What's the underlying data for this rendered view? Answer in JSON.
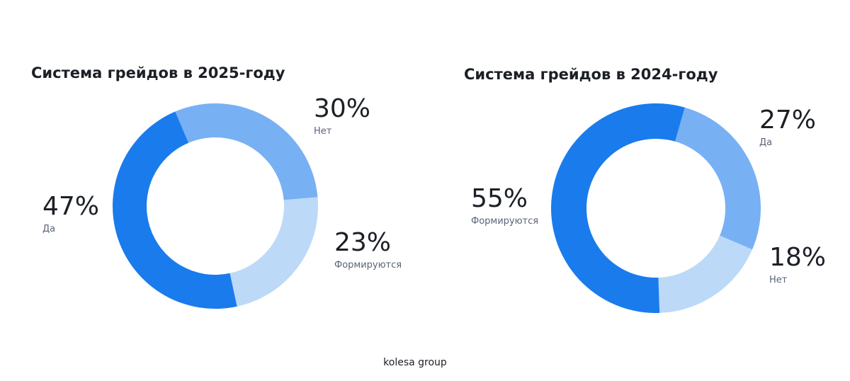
{
  "chart_data": [
    {
      "type": "donut",
      "title": "Система грейдов в 2025-году",
      "categories": [
        "Нет",
        "Формируются",
        "Да"
      ],
      "values": [
        30,
        23,
        47
      ],
      "value_labels": [
        "30%",
        "23%",
        "47%"
      ],
      "colors": [
        "#78b0f4",
        "#bcd9f8",
        "#1a7bec"
      ]
    },
    {
      "type": "donut",
      "title": "Система грейдов в 2024-году",
      "categories": [
        "Да",
        "Нет",
        "Формируются"
      ],
      "values": [
        27,
        18,
        55
      ],
      "value_labels": [
        "27%",
        "18%",
        "55%"
      ],
      "colors": [
        "#78b0f4",
        "#bcd9f8",
        "#1a7bec"
      ]
    }
  ],
  "footer": "kolesa group"
}
